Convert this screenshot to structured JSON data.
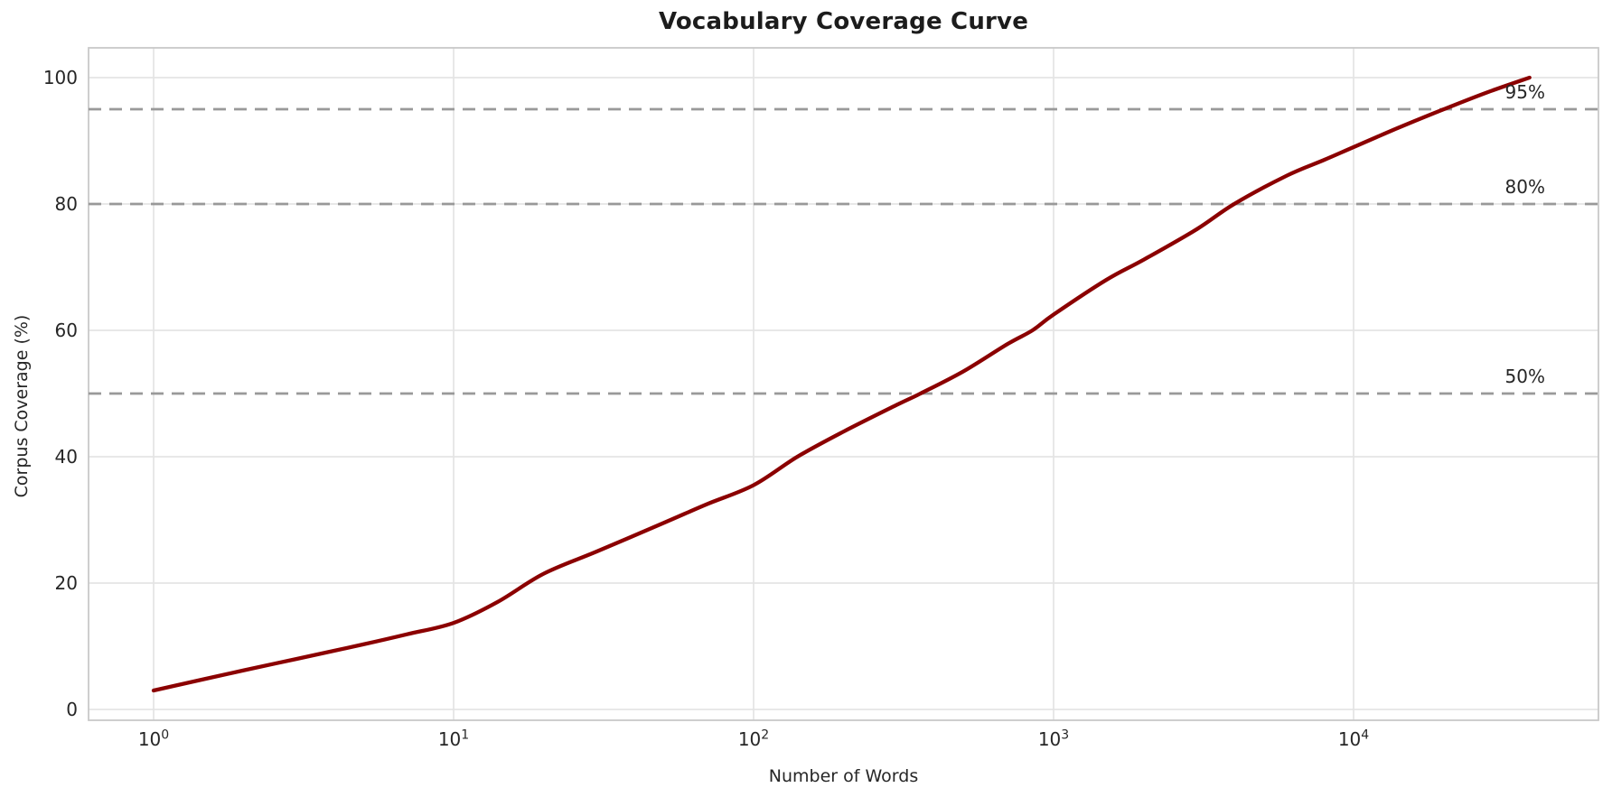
{
  "chart_data": {
    "type": "line",
    "title": "Vocabulary Coverage Curve",
    "xlabel": "Number of Words",
    "ylabel": "Corpus Coverage (%)",
    "x_scale": "log",
    "x_range": [
      1,
      38600
    ],
    "ylim": [
      0,
      100
    ],
    "grid": true,
    "legend": false,
    "x_ticks": [
      {
        "value": 1,
        "base": "10",
        "exp": "0"
      },
      {
        "value": 10,
        "base": "10",
        "exp": "1"
      },
      {
        "value": 100,
        "base": "10",
        "exp": "2"
      },
      {
        "value": 1000,
        "base": "10",
        "exp": "3"
      },
      {
        "value": 10000,
        "base": "10",
        "exp": "4"
      }
    ],
    "y_ticks": [
      0,
      20,
      40,
      60,
      80,
      100
    ],
    "series": [
      {
        "name": "corpus-coverage",
        "color": "#8b0000",
        "points": [
          [
            1,
            3.0
          ],
          [
            2,
            6.2
          ],
          [
            3,
            8.0
          ],
          [
            5,
            10.3
          ],
          [
            7,
            11.9
          ],
          [
            10,
            13.7
          ],
          [
            14,
            17.0
          ],
          [
            20,
            21.5
          ],
          [
            30,
            25.0
          ],
          [
            50,
            29.5
          ],
          [
            70,
            32.5
          ],
          [
            100,
            35.5
          ],
          [
            140,
            40.0
          ],
          [
            200,
            44.0
          ],
          [
            300,
            48.2
          ],
          [
            360,
            50.0
          ],
          [
            500,
            53.5
          ],
          [
            700,
            57.8
          ],
          [
            850,
            60.0
          ],
          [
            1000,
            62.5
          ],
          [
            1500,
            68.0
          ],
          [
            2000,
            71.2
          ],
          [
            3000,
            76.0
          ],
          [
            4000,
            80.0
          ],
          [
            6000,
            84.5
          ],
          [
            8000,
            87.0
          ],
          [
            10000,
            89.0
          ],
          [
            14000,
            92.0
          ],
          [
            20000,
            95.0
          ],
          [
            28000,
            97.7
          ],
          [
            38600,
            100.0
          ]
        ]
      }
    ],
    "reference_lines": [
      {
        "value": 50,
        "label": "50%",
        "color": "#999999",
        "style": "dashed"
      },
      {
        "value": 80,
        "label": "80%",
        "color": "#999999",
        "style": "dashed"
      },
      {
        "value": 95,
        "label": "95%",
        "color": "#999999",
        "style": "dashed"
      }
    ]
  }
}
